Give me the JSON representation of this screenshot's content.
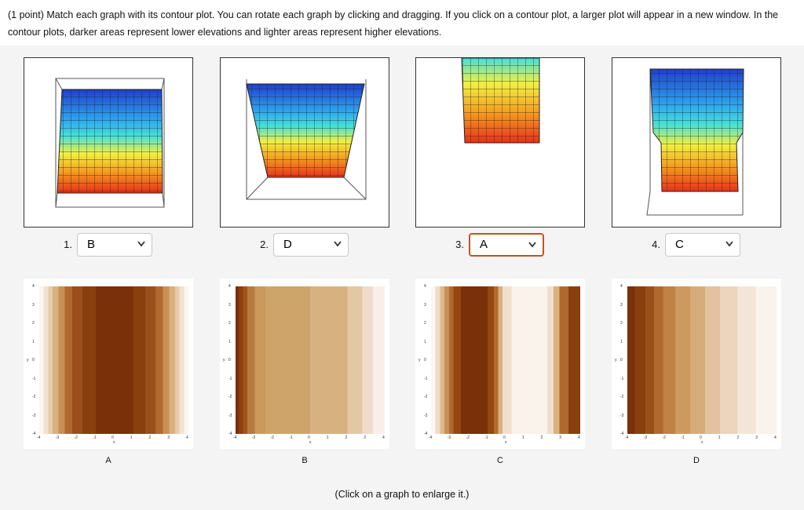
{
  "instructions": "(1 point) Match each graph with its contour plot. You can rotate each graph by clicking and dragging. If you click on a contour plot, a larger plot will appear in a new window. In the contour plots, darker areas represent lower elevations and lighter areas represent higher elevations.",
  "graphs": [
    {
      "number": "1.",
      "answer": "B"
    },
    {
      "number": "2.",
      "answer": "D"
    },
    {
      "number": "3.",
      "answer": "A"
    },
    {
      "number": "4.",
      "answer": "C"
    }
  ],
  "contour_plots": [
    {
      "label": "A"
    },
    {
      "label": "B"
    },
    {
      "label": "C"
    },
    {
      "label": "D"
    }
  ],
  "contour_axes": {
    "x_label": "x",
    "y_label": "y",
    "ticks": [
      -4,
      -3,
      -2,
      -1,
      0,
      1,
      2,
      3,
      4
    ]
  },
  "footer": "(Click on a graph to enlarge it.)"
}
